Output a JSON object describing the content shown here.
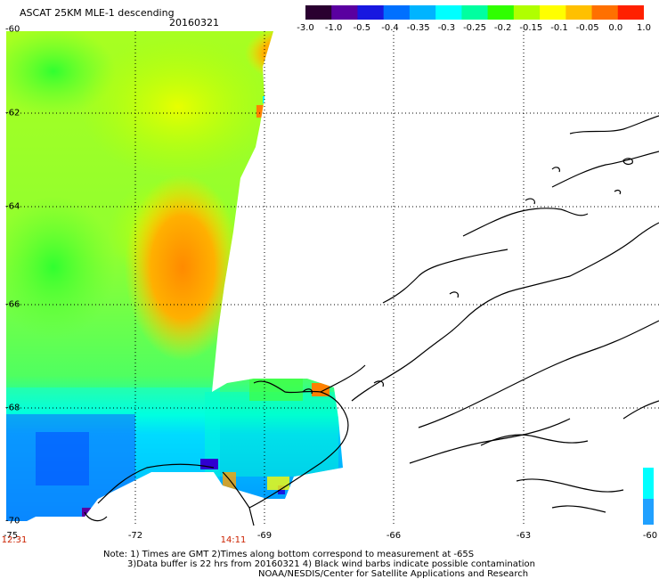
{
  "header": {
    "title": "ASCAT 25KM MLE-1 descending",
    "date": "20160321"
  },
  "colorbar": {
    "labels": [
      "-3.0",
      "-1.0",
      "-0.5",
      "-0.4",
      "-0.35",
      "-0.3",
      "-0.25",
      "-0.2",
      "-0.15",
      "-0.1",
      "-0.05",
      "0.0",
      "1.0"
    ],
    "colors": [
      "#2a0030",
      "#5a00a0",
      "#1818e0",
      "#0070ff",
      "#00b4ff",
      "#00ffff",
      "#00ffa0",
      "#30ff00",
      "#b0ff00",
      "#ffff00",
      "#ffc000",
      "#ff7000",
      "#ff2000"
    ]
  },
  "axes": {
    "lat_labels": [
      "-60",
      "-62",
      "-64",
      "-66",
      "-68",
      "-70"
    ],
    "lon_labels": [
      "-75",
      "-72",
      "-69",
      "-66",
      "-63",
      "-60"
    ]
  },
  "times": [
    "12:31",
    "14:11"
  ],
  "notes": [
    "Note: 1) Times are GMT 2)Times along bottom correspond to measurement at -65S",
    "3)Data buffer is 22 hrs from 20160321 4) Black wind barbs indicate possible contamination",
    "NOAA/NESDIS/Center for Satellite Applications and Research"
  ]
}
